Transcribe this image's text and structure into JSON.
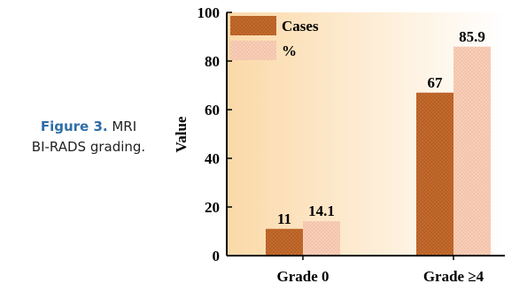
{
  "caption": {
    "label": "Figure 3.",
    "text_line1": "MRI",
    "text_line2": "BI-RADS grading."
  },
  "chart_data": {
    "type": "bar",
    "categories": [
      "Grade 0",
      "Grade ≥4"
    ],
    "series": [
      {
        "name": "Cases",
        "values": [
          11,
          67
        ],
        "color": "#c46a2c"
      },
      {
        "name": "%",
        "values": [
          14.1,
          85.9
        ],
        "color": "#f8cfb8"
      }
    ],
    "data_labels": [
      [
        "11",
        "67"
      ],
      [
        "14.1",
        "85.9"
      ]
    ],
    "ylabel": "Value",
    "xlabel": "",
    "ylim": [
      0,
      100
    ],
    "yticks": [
      0,
      20,
      40,
      60,
      80,
      100
    ],
    "grid": false,
    "legend": "top-left",
    "background": {
      "from": "#fbd9a8",
      "to": "#ffffff"
    }
  }
}
